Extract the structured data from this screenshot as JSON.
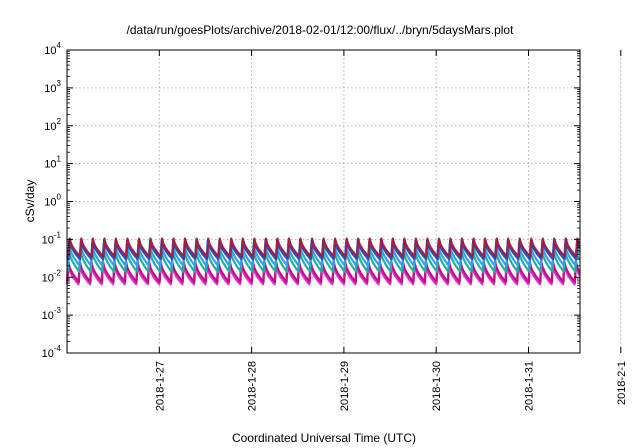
{
  "chart_data": {
    "type": "line",
    "title": "/data/run/goesPlots/archive/2018-02-01/12:00/flux/../bryn/5daysMars.plot",
    "xlabel": "Coordinated Universal Time (UTC)",
    "ylabel": "cSv/day",
    "y_scale": "log",
    "ylim": [
      0.0001,
      10000
    ],
    "y_ticks": [
      {
        "value": 0.0001,
        "mantissa": "10",
        "exp": "-4"
      },
      {
        "value": 0.001,
        "mantissa": "10",
        "exp": "-3"
      },
      {
        "value": 0.01,
        "mantissa": "10",
        "exp": "-2"
      },
      {
        "value": 0.1,
        "mantissa": "10",
        "exp": "-1"
      },
      {
        "value": 1,
        "mantissa": "10",
        "exp": "0"
      },
      {
        "value": 10,
        "mantissa": "10",
        "exp": "1"
      },
      {
        "value": 100,
        "mantissa": "10",
        "exp": "2"
      },
      {
        "value": 1000,
        "mantissa": "10",
        "exp": "3"
      },
      {
        "value": 10000,
        "mantissa": "10",
        "exp": "4"
      }
    ],
    "x_ticks": [
      "2018-1-27",
      "2018-1-28",
      "2018-1-29",
      "2018-1-30",
      "2018-1-31",
      "2018-2-1"
    ],
    "xlim": [
      "2018-01-27 00:00",
      "2018-02-01 12:00"
    ],
    "grid": true,
    "legend": "none",
    "pattern": "sawtooth, 8 cycles per day: sharp rise then decay",
    "series": [
      {
        "color": "#e030e0",
        "peak": 0.022,
        "trough": 0.0065
      },
      {
        "color": "#c01080",
        "peak": 0.026,
        "trough": 0.0075
      },
      {
        "color": "#20b0a0",
        "peak": 0.055,
        "trough": 0.014
      },
      {
        "color": "#30a0f0",
        "peak": 0.075,
        "trough": 0.02
      },
      {
        "color": "#2050d0",
        "peak": 0.095,
        "trough": 0.03
      },
      {
        "color": "#a02040",
        "peak": 0.105,
        "trough": 0.035
      }
    ]
  }
}
